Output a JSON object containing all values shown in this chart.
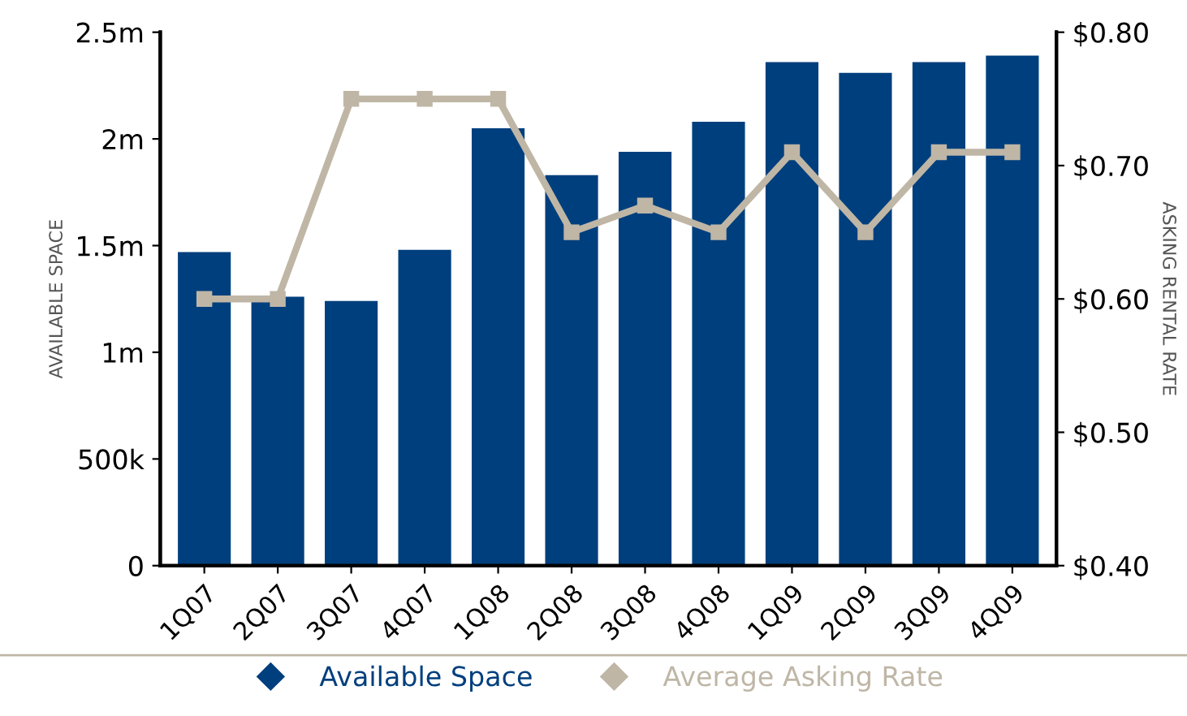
{
  "chart_data": {
    "type": "bar",
    "ylabel": "AVAILABLE SPACE",
    "y2label": "ASKING RENTAL RATE",
    "categories": [
      "1Q07",
      "2Q07",
      "3Q07",
      "4Q07",
      "1Q08",
      "2Q08",
      "3Q08",
      "4Q08",
      "1Q09",
      "2Q09",
      "3Q09",
      "4Q09"
    ],
    "series": [
      {
        "name": "Available Space",
        "color": "#003f7d",
        "values": [
          1470000,
          1260000,
          1240000,
          1480000,
          2050000,
          1830000,
          1940000,
          2080000,
          2360000,
          2310000,
          2360000,
          2390000
        ]
      },
      {
        "name": "Average Asking Rate",
        "type": "line",
        "axis": "y2",
        "color": "#bfb6a6",
        "marker": "square",
        "values": [
          0.6,
          0.6,
          0.75,
          0.75,
          0.75,
          0.65,
          0.67,
          0.65,
          0.71,
          0.65,
          0.71,
          0.71
        ]
      }
    ],
    "ylim": [
      0,
      2500000
    ],
    "yticks": [
      {
        "value": 0,
        "label": "0"
      },
      {
        "value": 500000,
        "label": "500k"
      },
      {
        "value": 1000000,
        "label": "1m"
      },
      {
        "value": 1500000,
        "label": "1.5m"
      },
      {
        "value": 2000000,
        "label": "2m"
      },
      {
        "value": 2500000,
        "label": "2.5m"
      }
    ],
    "y2lim": [
      0.4,
      0.8
    ],
    "y2ticks": [
      {
        "value": 0.4,
        "label": "$0.40"
      },
      {
        "value": 0.5,
        "label": "$0.50"
      },
      {
        "value": 0.6,
        "label": "$0.60"
      },
      {
        "value": 0.7,
        "label": "$0.70"
      },
      {
        "value": 0.8,
        "label": "$0.80"
      }
    ],
    "grid": false,
    "legend": "bottom"
  }
}
